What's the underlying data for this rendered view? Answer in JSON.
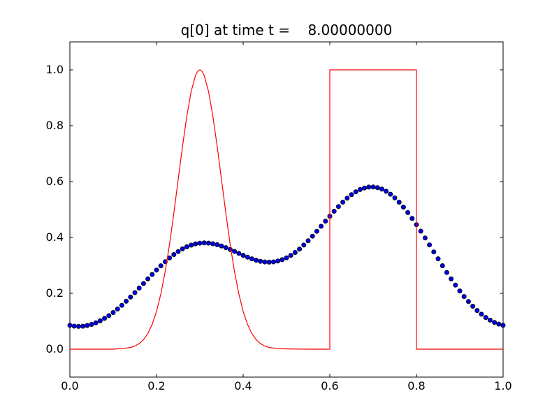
{
  "figure": {
    "background_color": "#ffffff",
    "border": "none"
  },
  "chart_data": {
    "type": "line",
    "title": "q[0] at time t =    8.00000000",
    "xlabel": "",
    "ylabel": "",
    "xlim": [
      0.0,
      1.0
    ],
    "ylim": [
      -0.1,
      1.1
    ],
    "grid": false,
    "legend": null,
    "tick_direction": "in",
    "box_color": "#000000",
    "x_ticks": [
      {
        "value": 0.0,
        "label": "0.0"
      },
      {
        "value": 0.2,
        "label": "0.2"
      },
      {
        "value": 0.4,
        "label": "0.4"
      },
      {
        "value": 0.6,
        "label": "0.6"
      },
      {
        "value": 0.8,
        "label": "0.8"
      },
      {
        "value": 1.0,
        "label": "1.0"
      }
    ],
    "y_ticks": [
      {
        "value": 0.0,
        "label": "0.0"
      },
      {
        "value": 0.2,
        "label": "0.2"
      },
      {
        "value": 0.4,
        "label": "0.4"
      },
      {
        "value": 0.6,
        "label": "0.6"
      },
      {
        "value": 0.8,
        "label": "0.8"
      },
      {
        "value": 1.0,
        "label": "1.0"
      }
    ],
    "series": [
      {
        "name": "numerical-solution",
        "style": "circle-markers",
        "marker": "o",
        "color": "#0000ee",
        "edge_color": "#000022",
        "x_start": 0.0,
        "x_step": 0.01,
        "y": [
          0.0852,
          0.0825,
          0.0815,
          0.0823,
          0.0847,
          0.0888,
          0.0945,
          0.1016,
          0.1102,
          0.1201,
          0.1313,
          0.1437,
          0.1571,
          0.1715,
          0.1866,
          0.2025,
          0.2187,
          0.235,
          0.2514,
          0.2675,
          0.2833,
          0.2985,
          0.3131,
          0.3264,
          0.3387,
          0.3495,
          0.3589,
          0.3666,
          0.3726,
          0.3769,
          0.3795,
          0.3805,
          0.3798,
          0.3776,
          0.3741,
          0.3693,
          0.3635,
          0.357,
          0.3501,
          0.343,
          0.3361,
          0.3295,
          0.3234,
          0.3185,
          0.3146,
          0.3123,
          0.3115,
          0.3125,
          0.3154,
          0.3202,
          0.3271,
          0.3357,
          0.3462,
          0.3586,
          0.3727,
          0.3881,
          0.4046,
          0.422,
          0.44,
          0.4581,
          0.4761,
          0.4937,
          0.5105,
          0.5262,
          0.5404,
          0.5529,
          0.5633,
          0.5715,
          0.5771,
          0.5802,
          0.5805,
          0.5782,
          0.5731,
          0.5653,
          0.5547,
          0.5416,
          0.5262,
          0.5086,
          0.4891,
          0.468,
          0.4458,
          0.4224,
          0.3981,
          0.3733,
          0.3483,
          0.3234,
          0.2988,
          0.2746,
          0.2514,
          0.2293,
          0.2084,
          0.1886,
          0.1704,
          0.1537,
          0.1386,
          0.1253,
          0.1136,
          0.1039,
          0.0958,
          0.0897,
          0.0852
        ]
      },
      {
        "name": "true-solution",
        "style": "solid-line",
        "color": "#ff0000",
        "points": [
          [
            0.0,
            0.0
          ],
          [
            0.05,
            0.0
          ],
          [
            0.1,
            0.0
          ],
          [
            0.12,
            0.002
          ],
          [
            0.14,
            0.006
          ],
          [
            0.15,
            0.011
          ],
          [
            0.16,
            0.02
          ],
          [
            0.17,
            0.034
          ],
          [
            0.18,
            0.056
          ],
          [
            0.19,
            0.089
          ],
          [
            0.2,
            0.135
          ],
          [
            0.21,
            0.198
          ],
          [
            0.22,
            0.278
          ],
          [
            0.23,
            0.375
          ],
          [
            0.24,
            0.487
          ],
          [
            0.25,
            0.607
          ],
          [
            0.26,
            0.726
          ],
          [
            0.27,
            0.835
          ],
          [
            0.28,
            0.923
          ],
          [
            0.29,
            0.98
          ],
          [
            0.295,
            0.995
          ],
          [
            0.3,
            1.0
          ],
          [
            0.305,
            0.995
          ],
          [
            0.31,
            0.98
          ],
          [
            0.32,
            0.923
          ],
          [
            0.33,
            0.835
          ],
          [
            0.34,
            0.726
          ],
          [
            0.35,
            0.607
          ],
          [
            0.36,
            0.487
          ],
          [
            0.37,
            0.375
          ],
          [
            0.38,
            0.278
          ],
          [
            0.39,
            0.198
          ],
          [
            0.4,
            0.135
          ],
          [
            0.41,
            0.089
          ],
          [
            0.42,
            0.056
          ],
          [
            0.43,
            0.034
          ],
          [
            0.44,
            0.02
          ],
          [
            0.45,
            0.011
          ],
          [
            0.46,
            0.006
          ],
          [
            0.48,
            0.002
          ],
          [
            0.5,
            0.001
          ],
          [
            0.55,
            0.0
          ],
          [
            0.6,
            0.0
          ],
          [
            0.6,
            1.0
          ],
          [
            0.8,
            1.0
          ],
          [
            0.8,
            0.0
          ],
          [
            1.0,
            0.0
          ]
        ]
      }
    ]
  }
}
